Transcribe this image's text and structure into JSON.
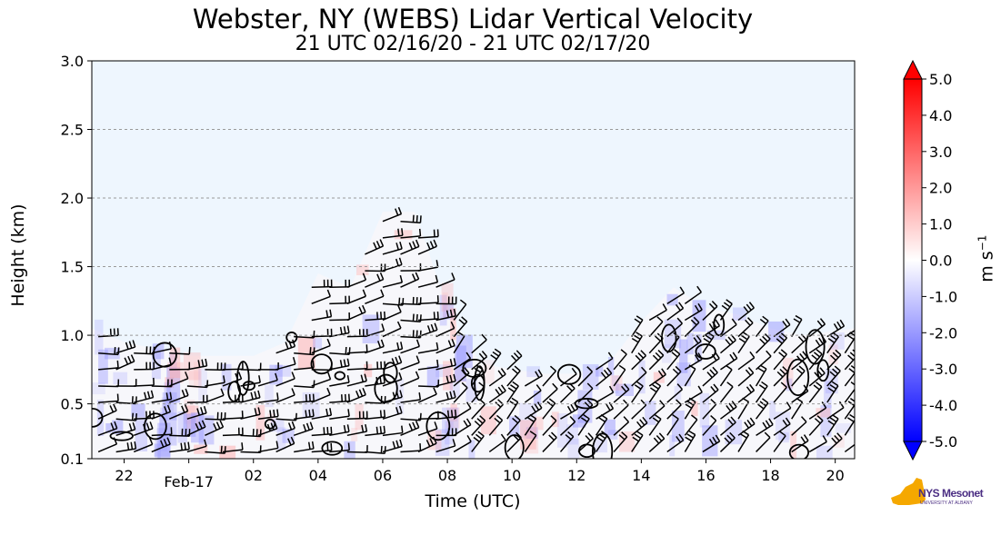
{
  "chart_data": {
    "type": "heatmap",
    "title": "Webster, NY (WEBS) Lidar Vertical Velocity",
    "subtitle": "21 UTC 02/16/20 - 21 UTC 02/17/20",
    "xlabel": "Time (UTC)",
    "ylabel": "Height (km)",
    "colorbar_label": "m s",
    "colorbar_exponent": "−1",
    "x_ticks": [
      "22",
      "Feb-17",
      "02",
      "04",
      "06",
      "08",
      "10",
      "12",
      "14",
      "16",
      "18",
      "20"
    ],
    "x_tick_hours": [
      22,
      24,
      26,
      28,
      30,
      32,
      34,
      36,
      38,
      40,
      42,
      44
    ],
    "xlim_hours": [
      21,
      44.6
    ],
    "ylim": [
      0.1,
      3.0
    ],
    "y_ticks": [
      "0.1",
      "0.5",
      "1.0",
      "1.5",
      "2.0",
      "2.5",
      "3.0"
    ],
    "y_tick_values": [
      0.1,
      0.5,
      1.0,
      1.5,
      2.0,
      2.5,
      3.0
    ],
    "grid": "dashed-horizontal",
    "colorbar_ticks": [
      "5.0",
      "4.0",
      "3.0",
      "2.0",
      "1.0",
      "0.0",
      "-1.0",
      "-2.0",
      "-3.0",
      "-4.0",
      "-5.0"
    ],
    "colorbar_values": [
      5,
      4,
      3,
      2,
      1,
      0,
      -1,
      -2,
      -3,
      -4,
      -5
    ],
    "colorbar_range": [
      -5,
      5
    ],
    "background_color": "#eef6fe",
    "data_top_profile": [
      [
        21.0,
        1.05
      ],
      [
        22.0,
        0.95
      ],
      [
        23.0,
        0.9
      ],
      [
        24.0,
        0.85
      ],
      [
        25.0,
        0.85
      ],
      [
        26.0,
        0.85
      ],
      [
        27.0,
        0.95
      ],
      [
        28.0,
        1.45
      ],
      [
        29.0,
        1.35
      ],
      [
        30.0,
        1.9
      ],
      [
        31.0,
        1.9
      ],
      [
        32.0,
        1.2
      ],
      [
        33.0,
        0.8
      ],
      [
        34.0,
        0.75
      ],
      [
        35.0,
        0.72
      ],
      [
        36.0,
        0.72
      ],
      [
        37.0,
        0.8
      ],
      [
        38.0,
        1.1
      ],
      [
        39.0,
        1.35
      ],
      [
        40.0,
        1.2
      ],
      [
        41.0,
        1.15
      ],
      [
        42.0,
        1.05
      ],
      [
        43.0,
        1.0
      ],
      [
        44.6,
        1.05
      ]
    ]
  },
  "logo": {
    "name": "NYS Mesonet",
    "text1": "NYS Mesonet",
    "text2": "UNIVERSITY AT ALBANY"
  }
}
